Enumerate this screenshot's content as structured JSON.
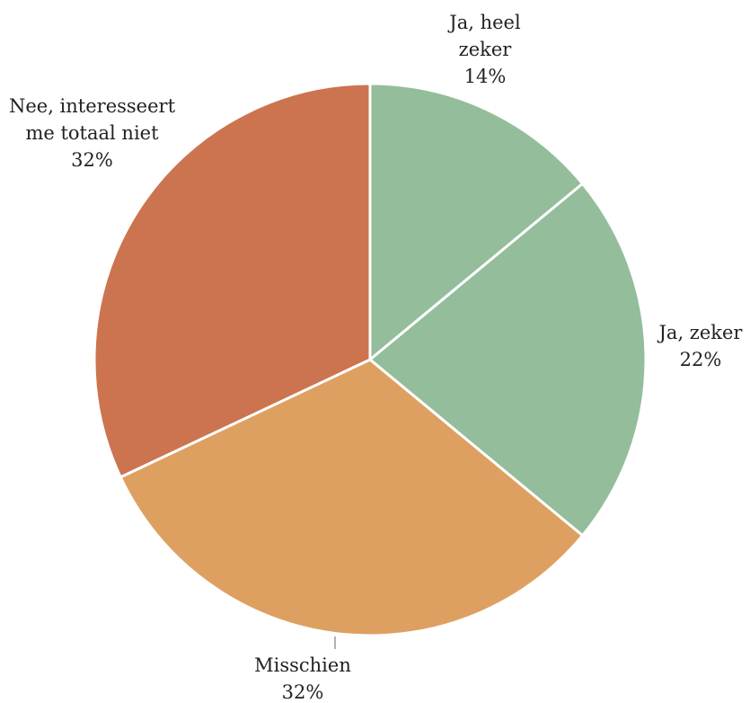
{
  "chart_data": {
    "type": "pie",
    "categories": [
      "Ja, heel zeker",
      "Ja, zeker",
      "Misschien",
      "Nee, interesseert me totaal niet"
    ],
    "values": [
      14,
      22,
      32,
      32
    ],
    "value_labels": [
      "14%",
      "22%",
      "32%",
      "32%"
    ],
    "colors": [
      "#93bd9b",
      "#93bd9b",
      "#dea061",
      "#cc7450"
    ]
  }
}
